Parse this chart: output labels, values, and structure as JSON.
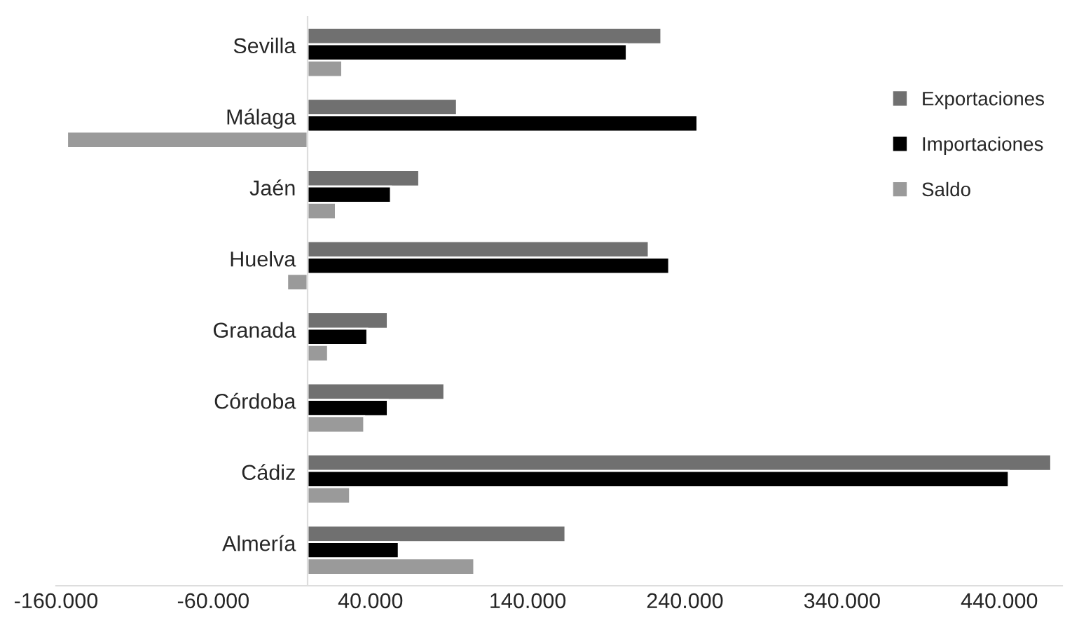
{
  "chart_data": {
    "type": "bar",
    "orientation": "horizontal",
    "categories": [
      "Sevilla",
      "Málaga",
      "Jaén",
      "Huelva",
      "Granada",
      "Córdoba",
      "Cádiz",
      "Almería"
    ],
    "series": [
      {
        "name": "Exportaciones",
        "color": "#707070",
        "values": [
          225000,
          95000,
          71000,
          217000,
          51000,
          87000,
          473000,
          164000
        ]
      },
      {
        "name": "Importaciones",
        "color": "#000000",
        "values": [
          203000,
          248000,
          53000,
          230000,
          38000,
          51000,
          446000,
          58000
        ]
      },
      {
        "name": "Saldo",
        "color": "#9a9a9a",
        "values": [
          22000,
          -153000,
          18000,
          -13000,
          13000,
          36000,
          27000,
          106000
        ]
      }
    ],
    "xlim": [
      -160000,
      480000
    ],
    "xticks": [
      {
        "value": -160000,
        "label": "-160.000"
      },
      {
        "value": -60000,
        "label": "-60.000"
      },
      {
        "value": 40000,
        "label": "40.000"
      },
      {
        "value": 140000,
        "label": "140.000"
      },
      {
        "value": 240000,
        "label": "240.000"
      },
      {
        "value": 340000,
        "label": "340.000"
      },
      {
        "value": 440000,
        "label": "440.000"
      }
    ],
    "legend": "right",
    "grid": false
  }
}
